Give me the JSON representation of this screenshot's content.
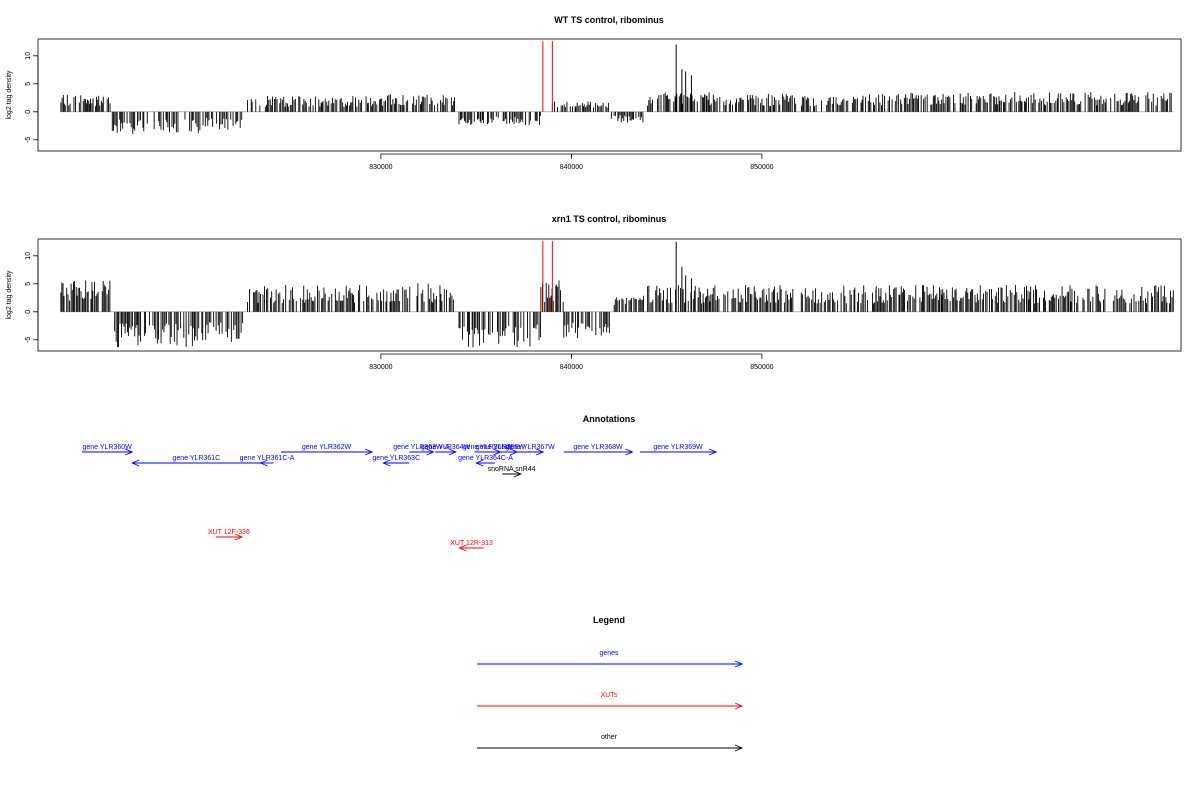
{
  "chart_data": [
    {
      "type": "bar",
      "title": "WT TS control, ribominus",
      "ylabel": "log2 tag density",
      "xlim": [
        812000,
        872000
      ],
      "ylim": [
        -7,
        13
      ],
      "yticks": [
        -5,
        0,
        5,
        10
      ],
      "xticks": [
        830000,
        840000,
        850000
      ],
      "xtick_labels": [
        "830000",
        "840000",
        "850000"
      ],
      "bar_color": "#000000",
      "marker_color": "#ff0000",
      "markers": [
        {
          "x": 838500,
          "ymax": 12.6
        },
        {
          "x": 839000,
          "ymax": 12.6
        }
      ],
      "segments": [
        {
          "from": 813200,
          "to": 815800,
          "dir": 1,
          "amp": 2.0
        },
        {
          "from": 815900,
          "to": 820500,
          "dir": -1,
          "amp": 2.5
        },
        {
          "from": 820600,
          "to": 822800,
          "dir": -1,
          "amp": 2.0
        },
        {
          "from": 823000,
          "to": 825800,
          "dir": 1,
          "amp": 1.8
        },
        {
          "from": 825900,
          "to": 829000,
          "dir": 1,
          "amp": 1.8
        },
        {
          "from": 829100,
          "to": 833900,
          "dir": 1,
          "amp": 2.0
        },
        {
          "from": 834100,
          "to": 838400,
          "dir": -1,
          "amp": 1.5
        },
        {
          "from": 839000,
          "to": 842000,
          "dir": 1,
          "amp": 1.2
        },
        {
          "from": 842100,
          "to": 843800,
          "dir": -1,
          "amp": 1.2
        },
        {
          "from": 844000,
          "to": 847800,
          "dir": 1,
          "amp": 2.2
        },
        {
          "from": 848000,
          "to": 851800,
          "dir": 1,
          "amp": 2.0
        },
        {
          "from": 852000,
          "to": 856000,
          "dir": 1,
          "amp": 2.0
        },
        {
          "from": 856000,
          "to": 871600,
          "dir": 1,
          "amp": 2.2
        }
      ],
      "peaks": [
        {
          "x": 845500,
          "y": 12.0
        },
        {
          "x": 845800,
          "y": 7.6
        },
        {
          "x": 846000,
          "y": 7.2
        },
        {
          "x": 846300,
          "y": 6.5
        }
      ]
    },
    {
      "type": "bar",
      "title": "xrn1 TS control, ribominus",
      "ylabel": "log2 tag density",
      "xlim": [
        812000,
        872000
      ],
      "ylim": [
        -7,
        13
      ],
      "yticks": [
        -5,
        0,
        5,
        10
      ],
      "xticks": [
        830000,
        840000,
        850000
      ],
      "xtick_labels": [
        "830000",
        "840000",
        "850000"
      ],
      "bar_color": "#000000",
      "marker_color": "#ff0000",
      "markers": [
        {
          "x": 838500,
          "ymax": 12.6
        },
        {
          "x": 839000,
          "ymax": 12.6
        }
      ],
      "segments": [
        {
          "from": 813200,
          "to": 815800,
          "dir": 1,
          "amp": 3.5
        },
        {
          "from": 815900,
          "to": 820500,
          "dir": -1,
          "amp": 4.0
        },
        {
          "from": 820600,
          "to": 822800,
          "dir": -1,
          "amp": 3.5
        },
        {
          "from": 823000,
          "to": 825800,
          "dir": 1,
          "amp": 3.0
        },
        {
          "from": 825900,
          "to": 829000,
          "dir": 1,
          "amp": 3.0
        },
        {
          "from": 829100,
          "to": 833900,
          "dir": 1,
          "amp": 3.2
        },
        {
          "from": 834100,
          "to": 838400,
          "dir": -1,
          "amp": 4.0
        },
        {
          "from": 838400,
          "to": 839600,
          "dir": 1,
          "amp": 3.5
        },
        {
          "from": 839600,
          "to": 842000,
          "dir": -1,
          "amp": 3.0
        },
        {
          "from": 842100,
          "to": 843800,
          "dir": 1,
          "amp": 2.0
        },
        {
          "from": 844000,
          "to": 847800,
          "dir": 1,
          "amp": 3.0
        },
        {
          "from": 848000,
          "to": 851800,
          "dir": 1,
          "amp": 3.0
        },
        {
          "from": 852000,
          "to": 856000,
          "dir": 1,
          "amp": 3.0
        },
        {
          "from": 856000,
          "to": 871600,
          "dir": 1,
          "amp": 3.0
        }
      ],
      "peaks": [
        {
          "x": 845500,
          "y": 12.5
        },
        {
          "x": 845800,
          "y": 8.0
        },
        {
          "x": 846000,
          "y": 6.5
        },
        {
          "x": 846300,
          "y": 6.0
        }
      ]
    }
  ],
  "annotations": {
    "title": "Annotations",
    "features": [
      {
        "label": "gene YLR360W",
        "start": 813200,
        "end": 815900,
        "strand": "+",
        "row": 0,
        "type": "gene"
      },
      {
        "label": "gene YLR361C",
        "start": 815900,
        "end": 822800,
        "strand": "-",
        "row": 1,
        "type": "gene"
      },
      {
        "label": "gene YLR361C-A",
        "start": 822800,
        "end": 823500,
        "strand": "-",
        "row": 1,
        "type": "gene"
      },
      {
        "label": "gene YLR362W",
        "start": 823900,
        "end": 828800,
        "strand": "+",
        "row": 0,
        "type": "gene"
      },
      {
        "label": "gene YLR363C",
        "start": 829400,
        "end": 830800,
        "strand": "-",
        "row": 1,
        "type": "gene"
      },
      {
        "label": "gene YLR363W-A",
        "start": 830800,
        "end": 832100,
        "strand": "+",
        "row": 0,
        "type": "gene"
      },
      {
        "label": "gene YLR364W",
        "start": 832200,
        "end": 833300,
        "strand": "+",
        "row": 0,
        "type": "gene"
      },
      {
        "label": "gene YLR364C-A",
        "start": 834400,
        "end": 835400,
        "strand": "-",
        "row": 1,
        "type": "gene"
      },
      {
        "label": "gene YLR365W",
        "start": 834300,
        "end": 835700,
        "strand": "+",
        "row": 0,
        "type": "gene"
      },
      {
        "label": "gene YLR366W",
        "start": 834800,
        "end": 836600,
        "strand": "+",
        "row": 0,
        "type": "gene"
      },
      {
        "label": "gene YLR367W",
        "start": 836600,
        "end": 838000,
        "strand": "+",
        "row": 0,
        "type": "gene"
      },
      {
        "label": "gene YLR368W",
        "start": 839100,
        "end": 842800,
        "strand": "+",
        "row": 0,
        "type": "gene"
      },
      {
        "label": "gene YLR369W",
        "start": 843200,
        "end": 847300,
        "strand": "+",
        "row": 0,
        "type": "gene"
      },
      {
        "label": "snoRNA snR44",
        "start": 835800,
        "end": 836800,
        "strand": "+",
        "row": 2,
        "type": "other"
      },
      {
        "label": "XUT 12F-336",
        "start": 820400,
        "end": 821800,
        "strand": "+",
        "row": 3,
        "type": "XUT"
      },
      {
        "label": "XUT 12R-313",
        "start": 833500,
        "end": 834800,
        "strand": "-",
        "row": 4,
        "type": "XUT"
      }
    ]
  },
  "legend": {
    "title": "Legend",
    "items": [
      {
        "label": "genes",
        "color": "#0000ff"
      },
      {
        "label": "XUTs",
        "color": "#ff0000"
      },
      {
        "label": "other",
        "color": "#000000"
      }
    ]
  }
}
